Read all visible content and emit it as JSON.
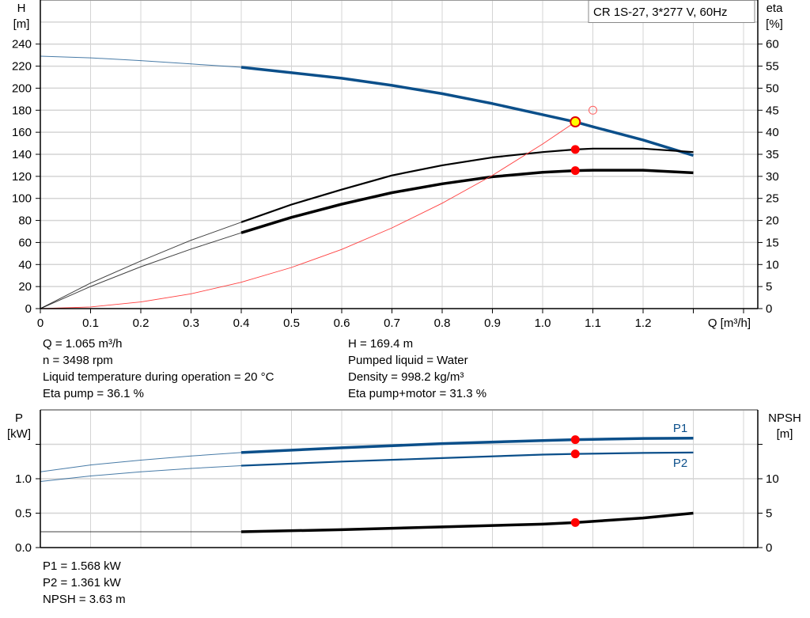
{
  "chart_data": [
    {
      "type": "line",
      "title": "CR 1S-27, 3*277 V, 60Hz",
      "xlabel": "Q [m³/h]",
      "ylabel_left": [
        "H",
        "[m]"
      ],
      "ylabel_right": [
        "eta",
        "[%]"
      ],
      "xlim": [
        0,
        1.4
      ],
      "ylim_left": [
        0,
        280
      ],
      "ylim_right": [
        0,
        70
      ],
      "x_ticks": [
        "0",
        "0.1",
        "0.2",
        "0.3",
        "0.4",
        "0.5",
        "0.6",
        "0.7",
        "0.8",
        "0.9",
        "1.0",
        "1.1",
        "1.2"
      ],
      "y_ticks_left": [
        "0",
        "20",
        "40",
        "60",
        "80",
        "100",
        "120",
        "140",
        "160",
        "180",
        "200",
        "220",
        "240"
      ],
      "y_ticks_right": [
        "0",
        "5",
        "10",
        "15",
        "20",
        "25",
        "30",
        "35",
        "40",
        "45",
        "50",
        "55",
        "60"
      ],
      "grid": true,
      "series": [
        {
          "key": "H",
          "axis": "left",
          "color": "#0b4f8a",
          "bold_from": 0.4,
          "x": [
            0,
            0.1,
            0.2,
            0.3,
            0.4,
            0.5,
            0.6,
            0.7,
            0.8,
            0.9,
            1.0,
            1.065,
            1.1,
            1.2,
            1.3
          ],
          "y": [
            229,
            227.5,
            225,
            222,
            219,
            214,
            209,
            202.5,
            195,
            186,
            176,
            169.4,
            165,
            153,
            139
          ]
        },
        {
          "key": "eta_pump",
          "axis": "right",
          "color": "#000000",
          "bold_from": 0.4,
          "x": [
            0,
            0.1,
            0.2,
            0.3,
            0.4,
            0.5,
            0.6,
            0.7,
            0.8,
            0.9,
            1.0,
            1.065,
            1.1,
            1.2,
            1.3
          ],
          "y": [
            0,
            5.8,
            10.8,
            15.5,
            19.6,
            23.6,
            27,
            30.2,
            32.5,
            34.3,
            35.5,
            36.1,
            36.3,
            36.3,
            35.5
          ]
        },
        {
          "key": "eta_pump_motor",
          "axis": "right",
          "color": "#000000",
          "bold_from": 0.4,
          "x": [
            0,
            0.1,
            0.2,
            0.3,
            0.4,
            0.5,
            0.6,
            0.7,
            0.8,
            0.9,
            1.0,
            1.065,
            1.1,
            1.2,
            1.3
          ],
          "y": [
            0,
            5,
            9.5,
            13.5,
            17.2,
            20.7,
            23.7,
            26.3,
            28.3,
            29.9,
            30.9,
            31.3,
            31.4,
            31.4,
            30.8
          ]
        },
        {
          "key": "system_curve",
          "axis": "left",
          "color": "#ff4040",
          "x": [
            0,
            0.1,
            0.2,
            0.3,
            0.4,
            0.5,
            0.6,
            0.7,
            0.8,
            0.9,
            1.0,
            1.065
          ],
          "y": [
            0,
            1.5,
            6,
            13.4,
            23.9,
            37.3,
            53.7,
            73.2,
            95.6,
            120.9,
            149.3,
            169.4
          ]
        }
      ],
      "markers": [
        {
          "key": "duty_point",
          "x": 1.065,
          "y": 169.4,
          "axis": "left",
          "fill": "#ffff00",
          "stroke": "#e00000"
        },
        {
          "key": "eta_pump_point",
          "x": 1.065,
          "y": 36.1,
          "axis": "right",
          "fill": "#ff0000"
        },
        {
          "key": "eta_pump_motor_point",
          "x": 1.065,
          "y": 31.3,
          "axis": "right",
          "fill": "#ff0000"
        },
        {
          "key": "requested_point",
          "x": 1.1,
          "y": 180,
          "axis": "left",
          "fill": "none",
          "stroke": "#ff6060"
        }
      ]
    },
    {
      "type": "line",
      "ylabel_left": [
        "P",
        "[kW]"
      ],
      "ylabel_right": [
        "NPSH",
        "[m]"
      ],
      "xlim": [
        0,
        1.4
      ],
      "ylim_left": [
        0,
        2.0
      ],
      "ylim_right": [
        0,
        20
      ],
      "y_ticks_left": [
        "0.0",
        "0.5",
        "1.0"
      ],
      "y_ticks_right": [
        "0",
        "5",
        "10"
      ],
      "grid": true,
      "series": [
        {
          "key": "P1",
          "name": "P1",
          "axis": "left",
          "color": "#0b4f8a",
          "bold_from": 0.4,
          "bold_width": 3.5,
          "x": [
            0,
            0.1,
            0.2,
            0.3,
            0.4,
            0.6,
            0.8,
            1.0,
            1.065,
            1.2,
            1.3
          ],
          "y": [
            1.1,
            1.2,
            1.27,
            1.33,
            1.38,
            1.45,
            1.51,
            1.555,
            1.568,
            1.585,
            1.59
          ]
        },
        {
          "key": "P2",
          "name": "P2",
          "axis": "left",
          "color": "#0b4f8a",
          "bold_from": 0.4,
          "bold_width": 2.2,
          "x": [
            0,
            0.1,
            0.2,
            0.3,
            0.4,
            0.6,
            0.8,
            1.0,
            1.065,
            1.2,
            1.3
          ],
          "y": [
            0.96,
            1.04,
            1.1,
            1.15,
            1.19,
            1.25,
            1.3,
            1.35,
            1.361,
            1.375,
            1.38
          ]
        },
        {
          "key": "NPSH",
          "axis": "right",
          "color": "#000000",
          "bold_from": 0.4,
          "bold_width": 3.5,
          "x": [
            0,
            0.4,
            0.6,
            0.8,
            1.0,
            1.065,
            1.2,
            1.3
          ],
          "y": [
            2.3,
            2.3,
            2.6,
            3.0,
            3.4,
            3.63,
            4.3,
            5.0
          ]
        }
      ],
      "markers": [
        {
          "key": "P1_point",
          "x": 1.065,
          "y": 1.568,
          "axis": "left",
          "fill": "#ff0000"
        },
        {
          "key": "P2_point",
          "x": 1.065,
          "y": 1.361,
          "axis": "left",
          "fill": "#ff0000"
        },
        {
          "key": "NPSH_point",
          "x": 1.065,
          "y": 3.63,
          "axis": "right",
          "fill": "#ff0000"
        }
      ]
    }
  ],
  "results_top": {
    "left": [
      "Q = 1.065 m³/h",
      "n = 3498 rpm",
      "Liquid temperature during operation = 20 °C",
      "Eta pump = 36.1 %"
    ],
    "right": [
      "H = 169.4 m",
      "Pumped liquid = Water",
      "Density = 998.2 kg/m³",
      "Eta pump+motor = 31.3 %"
    ]
  },
  "results_bottom": [
    "P1 = 1.568 kW",
    "P2 = 1.361 kW",
    "NPSH = 3.63 m"
  ]
}
